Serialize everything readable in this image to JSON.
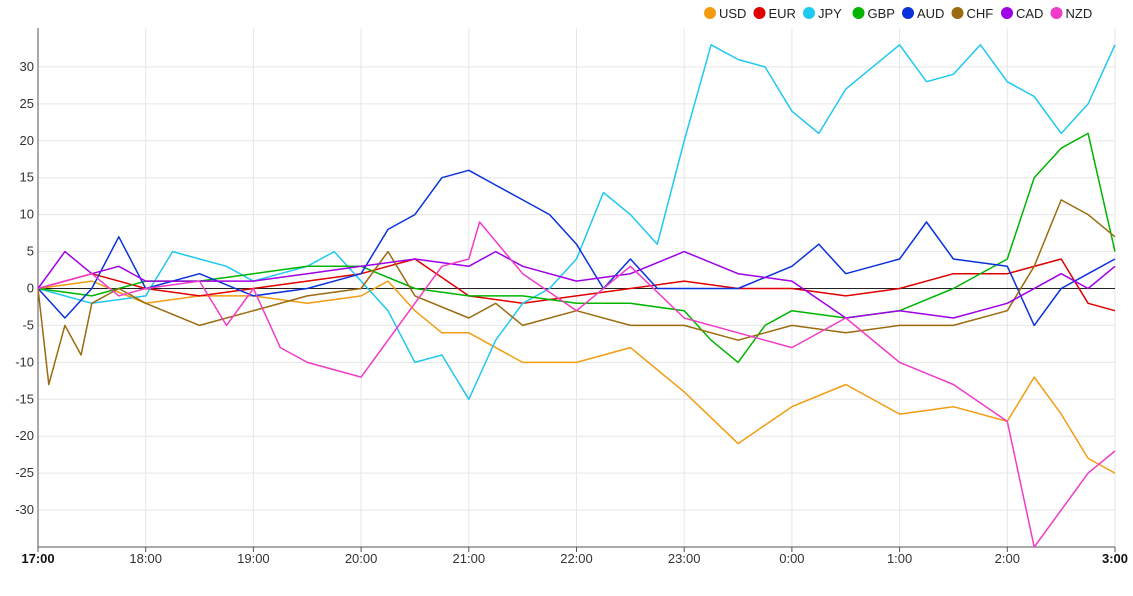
{
  "chart_data": {
    "type": "line",
    "title": "",
    "xlabel": "",
    "ylabel": "",
    "x_ticks": [
      "17:00",
      "18:00",
      "19:00",
      "20:00",
      "21:00",
      "22:00",
      "23:00",
      "0:00",
      "1:00",
      "2:00",
      "3:00"
    ],
    "x_ticks_bold": [
      "17:00",
      "3:00"
    ],
    "x_range_hours": [
      0,
      10
    ],
    "y_ticks": [
      30,
      25,
      20,
      15,
      10,
      5,
      0,
      -5,
      -10,
      -15,
      -20,
      -25,
      -30
    ],
    "ylim": [
      -35,
      35
    ],
    "grid": true,
    "zero_line": true,
    "legend_position": "top-right",
    "series": [
      {
        "name": "USD",
        "color": "#f39c12",
        "x": [
          0,
          0.5,
          1,
          1.5,
          2,
          2.5,
          3,
          3.25,
          3.5,
          3.75,
          4,
          4.5,
          5,
          5.5,
          6,
          6.5,
          7,
          7.5,
          8,
          8.5,
          9,
          9.25,
          9.5,
          9.75,
          10
        ],
        "values": [
          0,
          1,
          -2,
          -1,
          -1,
          -2,
          -1,
          1,
          -3,
          -6,
          -6,
          -10,
          -10,
          -8,
          -14,
          -21,
          -16,
          -13,
          -17,
          -16,
          -18,
          -12,
          -17,
          -23,
          -25
        ]
      },
      {
        "name": "EUR",
        "color": "#e00000",
        "x": [
          0,
          0.5,
          1,
          1.5,
          2,
          2.5,
          3,
          3.5,
          4,
          4.5,
          5,
          5.5,
          6,
          6.5,
          7,
          7.5,
          8,
          8.5,
          9,
          9.5,
          9.75,
          10
        ],
        "values": [
          0,
          2,
          0,
          -1,
          0,
          1,
          2,
          4,
          -1,
          -2,
          -1,
          0,
          1,
          0,
          0,
          -1,
          0,
          2,
          2,
          4,
          -2,
          -3
        ]
      },
      {
        "name": "JPY",
        "color": "#1ec8f0",
        "x": [
          0,
          0.5,
          1,
          1.25,
          1.5,
          1.75,
          2,
          2.25,
          2.5,
          2.75,
          3,
          3.25,
          3.5,
          3.75,
          4,
          4.25,
          4.5,
          4.75,
          5,
          5.25,
          5.5,
          5.75,
          6,
          6.25,
          6.5,
          6.75,
          7,
          7.25,
          7.5,
          7.75,
          8,
          8.25,
          8.5,
          8.75,
          9,
          9.25,
          9.5,
          9.75,
          10
        ],
        "values": [
          0,
          -2,
          -1,
          5,
          4,
          3,
          1,
          2,
          3,
          5,
          1,
          -3,
          -10,
          -9,
          -15,
          -7,
          -2,
          0,
          4,
          13,
          10,
          6,
          20,
          33,
          31,
          30,
          24,
          21,
          27,
          30,
          33,
          28,
          29,
          33,
          28,
          26,
          21,
          25,
          33
        ]
      },
      {
        "name": "GBP",
        "color": "#00b400",
        "x": [
          0,
          0.5,
          1,
          1.5,
          2,
          2.5,
          3,
          3.5,
          4,
          4.5,
          5,
          5.5,
          6,
          6.25,
          6.5,
          6.75,
          7,
          7.5,
          8,
          8.5,
          9,
          9.25,
          9.5,
          9.75,
          10
        ],
        "values": [
          0,
          -1,
          1,
          1,
          2,
          3,
          3,
          0,
          -1,
          -1,
          -2,
          -2,
          -3,
          -7,
          -10,
          -5,
          -3,
          -4,
          -3,
          0,
          4,
          15,
          19,
          21,
          5
        ]
      },
      {
        "name": "AUD",
        "color": "#0a32dc",
        "x": [
          0,
          0.25,
          0.5,
          0.75,
          1,
          1.5,
          2,
          2.5,
          3,
          3.25,
          3.5,
          3.75,
          4,
          4.25,
          4.5,
          4.75,
          5,
          5.25,
          5.5,
          5.75,
          6,
          6.5,
          7,
          7.25,
          7.5,
          8,
          8.25,
          8.5,
          9,
          9.25,
          9.5,
          9.75,
          10
        ],
        "values": [
          0,
          -4,
          0,
          7,
          0,
          2,
          -1,
          0,
          2,
          8,
          10,
          15,
          16,
          14,
          12,
          10,
          6,
          0,
          4,
          0,
          0,
          0,
          3,
          6,
          2,
          4,
          9,
          4,
          3,
          -5,
          0,
          2,
          4
        ]
      },
      {
        "name": "CHF",
        "color": "#9b6b0e",
        "x": [
          0,
          0.1,
          0.25,
          0.4,
          0.5,
          0.75,
          1,
          1.5,
          2,
          2.5,
          3,
          3.25,
          3.5,
          4,
          4.25,
          4.5,
          5,
          5.5,
          6,
          6.5,
          7,
          7.5,
          8,
          8.5,
          9,
          9.25,
          9.5,
          9.75,
          10
        ],
        "values": [
          0,
          -13,
          -5,
          -9,
          -2,
          0,
          -2,
          -5,
          -3,
          -1,
          0,
          5,
          -1,
          -4,
          -2,
          -5,
          -3,
          -5,
          -5,
          -7,
          -5,
          -6,
          -5,
          -5,
          -3,
          3,
          12,
          10,
          7
        ]
      },
      {
        "name": "CAD",
        "color": "#a000e6",
        "x": [
          0,
          0.25,
          0.5,
          0.75,
          1,
          1.5,
          2,
          2.5,
          3,
          3.5,
          4,
          4.25,
          4.5,
          5,
          5.5,
          6,
          6.5,
          7,
          7.5,
          8,
          8.5,
          9,
          9.5,
          9.75,
          10
        ],
        "values": [
          0,
          5,
          2,
          3,
          1,
          1,
          1,
          2,
          3,
          4,
          3,
          5,
          3,
          1,
          2,
          5,
          2,
          1,
          -4,
          -3,
          -4,
          -2,
          2,
          0,
          3
        ]
      },
      {
        "name": "NZD",
        "color": "#f03cc8",
        "x": [
          0,
          0.25,
          0.5,
          0.75,
          1,
          1.5,
          1.75,
          2,
          2.25,
          2.5,
          3,
          3.5,
          3.75,
          4,
          4.1,
          4.5,
          5,
          5.5,
          6,
          6.5,
          7,
          7.5,
          8,
          8.5,
          9,
          9.25,
          9.5,
          9.75,
          10
        ],
        "values": [
          0,
          1,
          2,
          -1,
          0,
          1,
          -5,
          0,
          -8,
          -10,
          -12,
          -2,
          3,
          4,
          9,
          2,
          -3,
          3,
          -4,
          -6,
          -8,
          -4,
          -10,
          -13,
          -18,
          -35,
          -30,
          -25,
          -22
        ]
      }
    ]
  }
}
